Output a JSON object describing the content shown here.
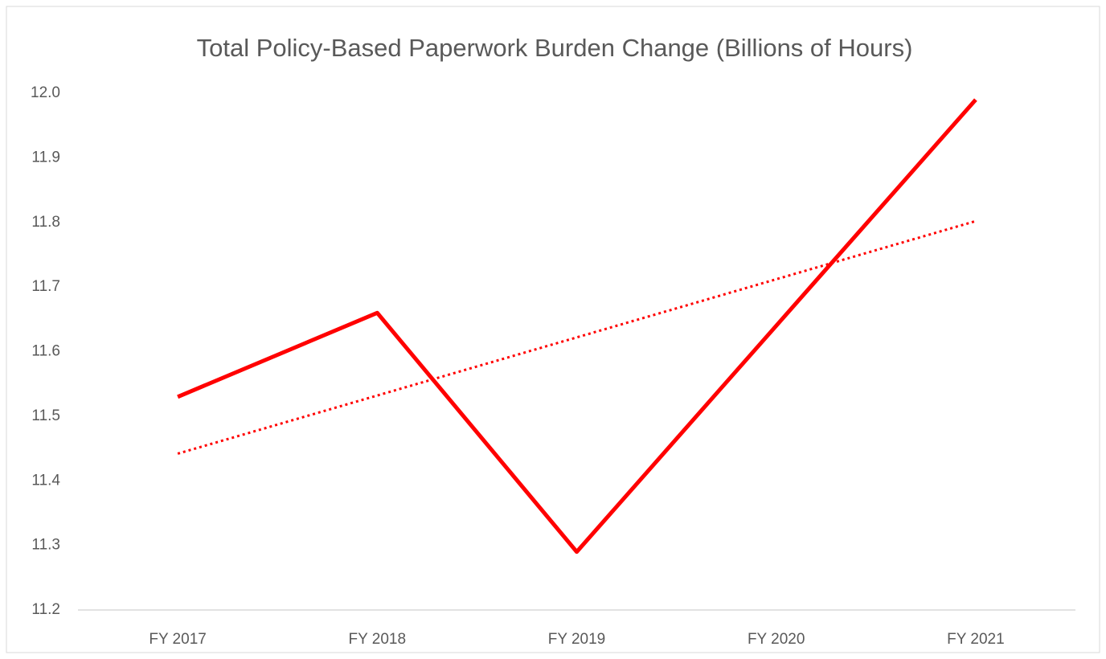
{
  "chart_data": {
    "type": "line",
    "title": "Total Policy-Based Paperwork Burden Change (Billions of Hours)",
    "categories": [
      "FY 2017",
      "FY 2018",
      "FY 2019",
      "FY 2020",
      "FY 2021"
    ],
    "series": [
      {
        "color": "#ff0000",
        "values": [
          11.53,
          11.66,
          11.29,
          11.64,
          11.99
        ]
      }
    ],
    "trendline": "linear",
    "ylim": [
      11.2,
      12.0
    ],
    "yticks": [
      {
        "value": 11.2,
        "label": "11.2"
      },
      {
        "value": 11.3,
        "label": "11.3"
      },
      {
        "value": 11.4,
        "label": "11.4"
      },
      {
        "value": 11.5,
        "label": "11.5"
      },
      {
        "value": 11.6,
        "label": "11.6"
      },
      {
        "value": 11.7,
        "label": "11.7"
      },
      {
        "value": 11.8,
        "label": "11.8"
      },
      {
        "value": 11.9,
        "label": "11.9"
      },
      {
        "value": 12.0,
        "label": "12.0"
      }
    ],
    "grid": false
  }
}
